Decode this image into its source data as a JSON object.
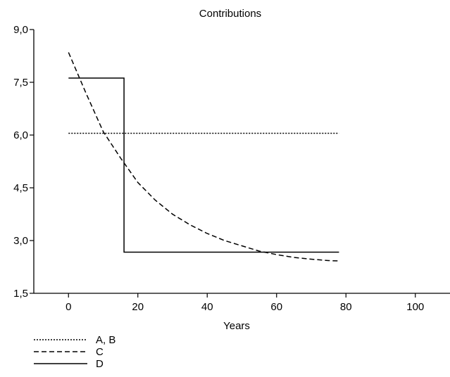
{
  "chart_data": {
    "type": "line",
    "title": "Contributions",
    "xlabel": "Years",
    "ylabel": "",
    "xlim": [
      -10,
      110
    ],
    "ylim": [
      1.5,
      9.0
    ],
    "x_ticks": [
      0,
      20,
      40,
      60,
      80,
      100
    ],
    "x_tick_labels": [
      "0",
      "20",
      "40",
      "60",
      "80",
      "100"
    ],
    "y_ticks": [
      1.5,
      3.0,
      4.5,
      6.0,
      7.5,
      9.0
    ],
    "y_tick_labels": [
      "1,5",
      "3,0",
      "4,5",
      "6,0",
      "7,5",
      "9,0"
    ],
    "grid": false,
    "legend_position": "bottom-left",
    "series": [
      {
        "name": "A, B",
        "style": "dotted",
        "x": [
          0,
          78
        ],
        "y": [
          6.05,
          6.05
        ]
      },
      {
        "name": "C",
        "style": "dashed",
        "x": [
          0,
          5,
          10,
          15,
          20,
          25,
          30,
          35,
          40,
          45,
          50,
          55,
          60,
          65,
          70,
          75,
          78
        ],
        "y": [
          8.35,
          7.2,
          6.1,
          5.35,
          4.65,
          4.15,
          3.75,
          3.45,
          3.2,
          3.0,
          2.85,
          2.7,
          2.6,
          2.52,
          2.47,
          2.43,
          2.42
        ]
      },
      {
        "name": "D",
        "style": "solid",
        "x": [
          0,
          16,
          16,
          78
        ],
        "y": [
          7.62,
          7.62,
          2.67,
          2.67
        ]
      }
    ]
  }
}
